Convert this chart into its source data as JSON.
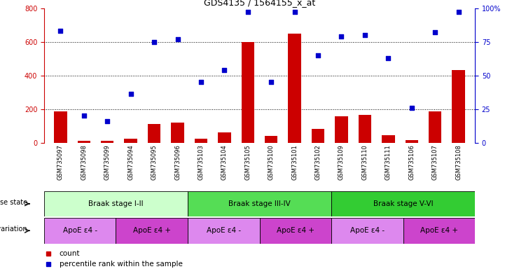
{
  "title": "GDS4135 / 1564155_x_at",
  "samples": [
    "GSM735097",
    "GSM735098",
    "GSM735099",
    "GSM735094",
    "GSM735095",
    "GSM735096",
    "GSM735103",
    "GSM735104",
    "GSM735105",
    "GSM735100",
    "GSM735101",
    "GSM735102",
    "GSM735109",
    "GSM735110",
    "GSM735111",
    "GSM735106",
    "GSM735107",
    "GSM735108"
  ],
  "counts": [
    185,
    10,
    10,
    25,
    110,
    120,
    25,
    60,
    600,
    40,
    650,
    80,
    155,
    165,
    45,
    15,
    185,
    430
  ],
  "percentiles": [
    83,
    20,
    16,
    36,
    75,
    77,
    45,
    54,
    97,
    45,
    97,
    65,
    79,
    80,
    63,
    26,
    82,
    97
  ],
  "bar_color": "#cc0000",
  "dot_color": "#0000cc",
  "ylim_left": [
    0,
    800
  ],
  "ylim_right": [
    0,
    100
  ],
  "yticks_left": [
    0,
    200,
    400,
    600,
    800
  ],
  "yticks_right": [
    0,
    25,
    50,
    75,
    100
  ],
  "disease_state_groups": [
    {
      "label": "Braak stage I-II",
      "start": 0,
      "end": 6,
      "color": "#ccffcc"
    },
    {
      "label": "Braak stage III-IV",
      "start": 6,
      "end": 12,
      "color": "#55dd55"
    },
    {
      "label": "Braak stage V-VI",
      "start": 12,
      "end": 18,
      "color": "#33cc33"
    }
  ],
  "genotype_groups": [
    {
      "label": "ApoE ε4 -",
      "start": 0,
      "end": 3,
      "color": "#dd88ee"
    },
    {
      "label": "ApoE ε4 +",
      "start": 3,
      "end": 6,
      "color": "#cc44cc"
    },
    {
      "label": "ApoE ε4 -",
      "start": 6,
      "end": 9,
      "color": "#dd88ee"
    },
    {
      "label": "ApoE ε4 +",
      "start": 9,
      "end": 12,
      "color": "#cc44cc"
    },
    {
      "label": "ApoE ε4 -",
      "start": 12,
      "end": 15,
      "color": "#dd88ee"
    },
    {
      "label": "ApoE ε4 +",
      "start": 15,
      "end": 18,
      "color": "#cc44cc"
    }
  ],
  "left_ylabel_color": "#cc0000",
  "right_ylabel_color": "#0000cc",
  "background_color": "#ffffff"
}
